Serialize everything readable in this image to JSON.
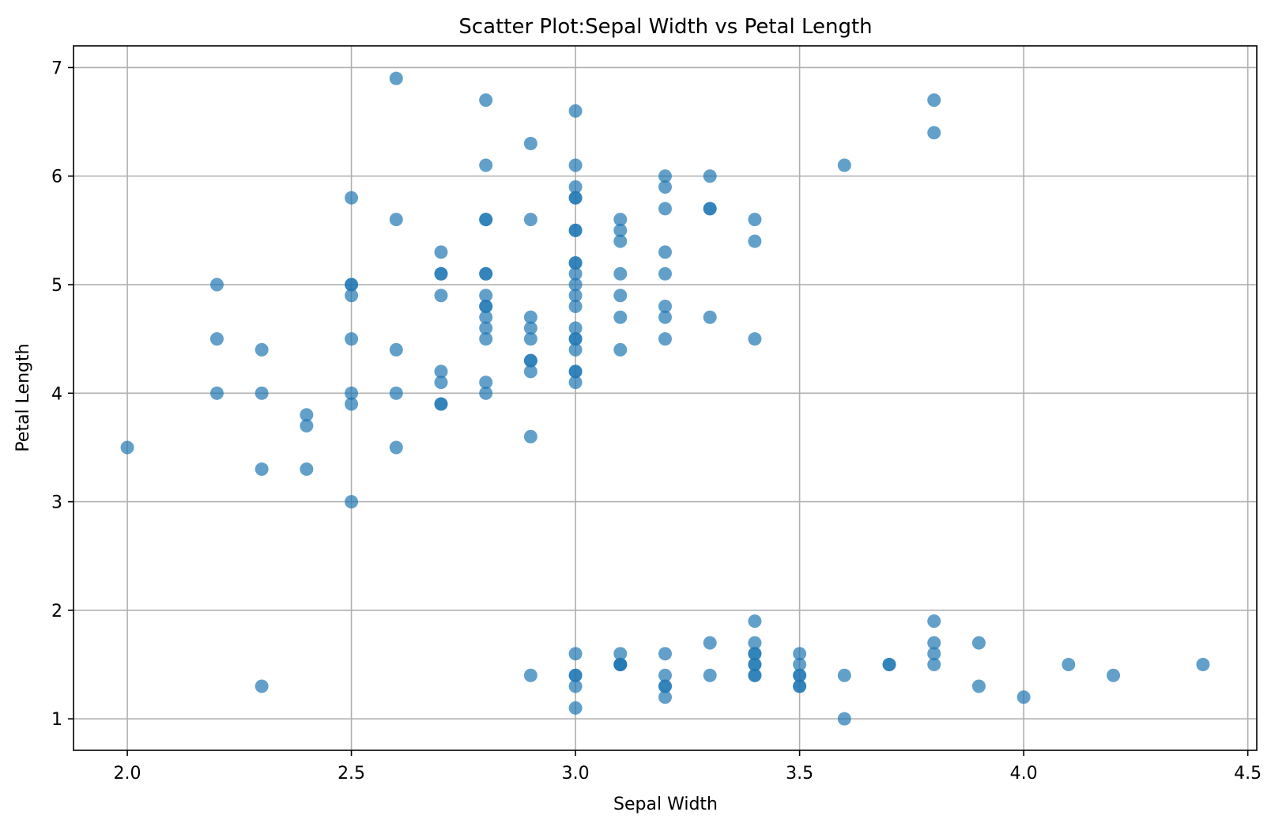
{
  "chart_data": {
    "type": "scatter",
    "title": "Scatter Plot:Sepal Width vs Petal Length",
    "xlabel": "Sepal Width",
    "ylabel": "Petal Length",
    "xlim": [
      1.88,
      4.52
    ],
    "ylim": [
      0.71,
      7.2
    ],
    "xticks": [
      2.0,
      2.5,
      3.0,
      3.5,
      4.0,
      4.5
    ],
    "xtick_labels": [
      "2.0",
      "2.5",
      "3.0",
      "3.5",
      "4.0",
      "4.5"
    ],
    "yticks": [
      1,
      2,
      3,
      4,
      5,
      6,
      7
    ],
    "ytick_labels": [
      "1",
      "2",
      "3",
      "4",
      "5",
      "6",
      "7"
    ],
    "grid": true,
    "marker_color": "#1f77b4",
    "marker_opacity": 0.7,
    "points": [
      [
        2.0,
        3.5
      ],
      [
        2.2,
        5.0
      ],
      [
        2.2,
        4.5
      ],
      [
        2.2,
        4.0
      ],
      [
        2.3,
        4.4
      ],
      [
        2.3,
        4.0
      ],
      [
        2.3,
        3.3
      ],
      [
        2.3,
        1.3
      ],
      [
        2.4,
        3.8
      ],
      [
        2.4,
        3.7
      ],
      [
        2.4,
        3.3
      ],
      [
        2.5,
        5.8
      ],
      [
        2.5,
        5.0
      ],
      [
        2.5,
        5.0
      ],
      [
        2.5,
        4.9
      ],
      [
        2.5,
        4.5
      ],
      [
        2.5,
        4.0
      ],
      [
        2.5,
        3.9
      ],
      [
        2.5,
        3.0
      ],
      [
        2.6,
        6.9
      ],
      [
        2.6,
        5.6
      ],
      [
        2.6,
        4.4
      ],
      [
        2.6,
        4.0
      ],
      [
        2.6,
        3.5
      ],
      [
        2.7,
        5.3
      ],
      [
        2.7,
        5.1
      ],
      [
        2.7,
        5.1
      ],
      [
        2.7,
        4.9
      ],
      [
        2.7,
        4.2
      ],
      [
        2.7,
        4.1
      ],
      [
        2.7,
        3.9
      ],
      [
        2.7,
        3.9
      ],
      [
        2.8,
        6.7
      ],
      [
        2.8,
        6.1
      ],
      [
        2.8,
        5.6
      ],
      [
        2.8,
        5.6
      ],
      [
        2.8,
        5.1
      ],
      [
        2.8,
        5.1
      ],
      [
        2.8,
        4.9
      ],
      [
        2.8,
        4.8
      ],
      [
        2.8,
        4.8
      ],
      [
        2.8,
        4.7
      ],
      [
        2.8,
        4.6
      ],
      [
        2.8,
        4.5
      ],
      [
        2.8,
        4.1
      ],
      [
        2.8,
        4.0
      ],
      [
        2.9,
        6.3
      ],
      [
        2.9,
        5.6
      ],
      [
        2.9,
        4.7
      ],
      [
        2.9,
        4.6
      ],
      [
        2.9,
        4.5
      ],
      [
        2.9,
        4.3
      ],
      [
        2.9,
        4.3
      ],
      [
        2.9,
        4.2
      ],
      [
        2.9,
        3.6
      ],
      [
        2.9,
        1.4
      ],
      [
        3.0,
        6.6
      ],
      [
        3.0,
        6.1
      ],
      [
        3.0,
        5.9
      ],
      [
        3.0,
        5.8
      ],
      [
        3.0,
        5.8
      ],
      [
        3.0,
        5.5
      ],
      [
        3.0,
        5.5
      ],
      [
        3.0,
        5.2
      ],
      [
        3.0,
        5.2
      ],
      [
        3.0,
        5.1
      ],
      [
        3.0,
        5.0
      ],
      [
        3.0,
        4.9
      ],
      [
        3.0,
        4.8
      ],
      [
        3.0,
        4.6
      ],
      [
        3.0,
        4.5
      ],
      [
        3.0,
        4.5
      ],
      [
        3.0,
        4.4
      ],
      [
        3.0,
        4.2
      ],
      [
        3.0,
        4.2
      ],
      [
        3.0,
        4.1
      ],
      [
        3.0,
        1.6
      ],
      [
        3.0,
        1.4
      ],
      [
        3.0,
        1.4
      ],
      [
        3.0,
        1.3
      ],
      [
        3.0,
        1.1
      ],
      [
        3.1,
        5.6
      ],
      [
        3.1,
        5.5
      ],
      [
        3.1,
        5.4
      ],
      [
        3.1,
        5.1
      ],
      [
        3.1,
        4.9
      ],
      [
        3.1,
        4.7
      ],
      [
        3.1,
        4.4
      ],
      [
        3.1,
        1.6
      ],
      [
        3.1,
        1.5
      ],
      [
        3.1,
        1.5
      ],
      [
        3.1,
        1.5
      ],
      [
        3.2,
        6.0
      ],
      [
        3.2,
        5.9
      ],
      [
        3.2,
        5.7
      ],
      [
        3.2,
        5.3
      ],
      [
        3.2,
        5.1
      ],
      [
        3.2,
        4.8
      ],
      [
        3.2,
        4.7
      ],
      [
        3.2,
        4.5
      ],
      [
        3.2,
        1.6
      ],
      [
        3.2,
        1.4
      ],
      [
        3.2,
        1.3
      ],
      [
        3.2,
        1.3
      ],
      [
        3.2,
        1.2
      ],
      [
        3.3,
        6.0
      ],
      [
        3.3,
        5.7
      ],
      [
        3.3,
        5.7
      ],
      [
        3.3,
        4.7
      ],
      [
        3.3,
        1.7
      ],
      [
        3.3,
        1.4
      ],
      [
        3.4,
        5.6
      ],
      [
        3.4,
        5.4
      ],
      [
        3.4,
        4.5
      ],
      [
        3.4,
        1.9
      ],
      [
        3.4,
        1.7
      ],
      [
        3.4,
        1.6
      ],
      [
        3.4,
        1.6
      ],
      [
        3.4,
        1.5
      ],
      [
        3.4,
        1.5
      ],
      [
        3.4,
        1.4
      ],
      [
        3.4,
        1.4
      ],
      [
        3.5,
        1.6
      ],
      [
        3.5,
        1.5
      ],
      [
        3.5,
        1.4
      ],
      [
        3.5,
        1.4
      ],
      [
        3.5,
        1.3
      ],
      [
        3.5,
        1.3
      ],
      [
        3.6,
        6.1
      ],
      [
        3.6,
        1.4
      ],
      [
        3.6,
        1.0
      ],
      [
        3.7,
        1.5
      ],
      [
        3.7,
        1.5
      ],
      [
        3.8,
        6.7
      ],
      [
        3.8,
        6.4
      ],
      [
        3.8,
        1.9
      ],
      [
        3.8,
        1.7
      ],
      [
        3.8,
        1.6
      ],
      [
        3.8,
        1.5
      ],
      [
        3.9,
        1.7
      ],
      [
        3.9,
        1.3
      ],
      [
        4.0,
        1.2
      ],
      [
        4.1,
        1.5
      ],
      [
        4.2,
        1.4
      ],
      [
        4.4,
        1.5
      ]
    ]
  }
}
